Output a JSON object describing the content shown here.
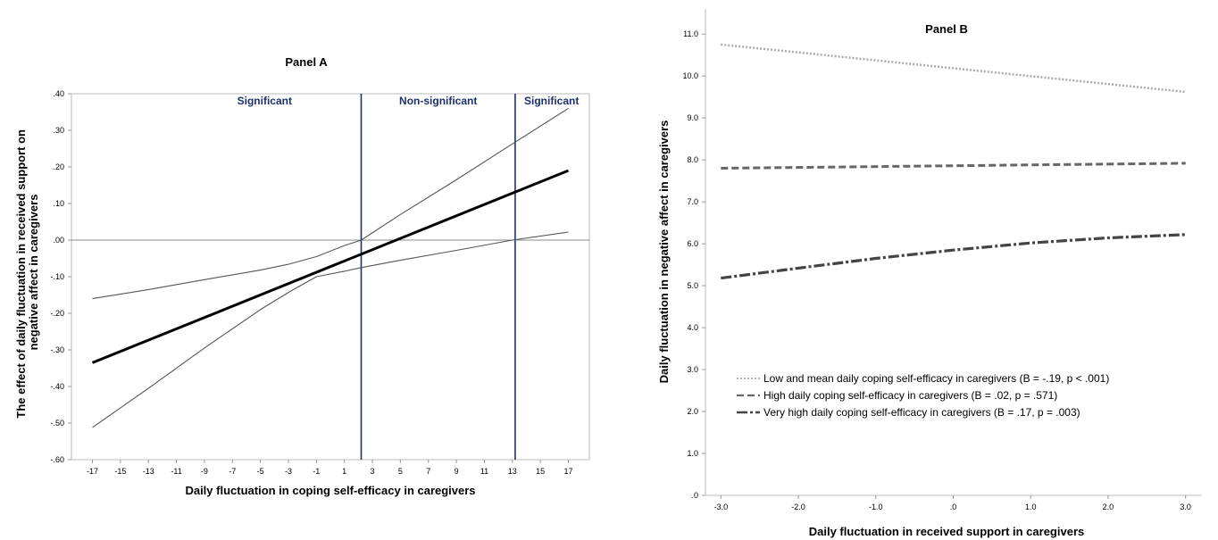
{
  "chart_data": [
    {
      "type": "line",
      "title": "Panel A",
      "xlabel": "Daily fluctuation in coping self-efficacy in caregivers",
      "ylabel": "The effect of daily fluctuation in received support on negative affect in caregivers",
      "xlim": [
        -18.5,
        18.5
      ],
      "ylim": [
        -0.6,
        0.4
      ],
      "x_ticks": [
        -17,
        -15,
        -13,
        -11,
        -9,
        -7,
        -5,
        -3,
        -1,
        1,
        3,
        5,
        7,
        9,
        11,
        13,
        15,
        17
      ],
      "x_tick_labels": [
        "-17",
        "-15",
        "-13",
        "-11",
        "-9",
        "-7",
        "-5",
        "-3",
        "-1",
        "1",
        "3",
        "5",
        "7",
        "9",
        "11",
        "13",
        "15",
        "17"
      ],
      "y_ticks": [
        -0.6,
        -0.5,
        -0.4,
        -0.3,
        -0.2,
        -0.1,
        0.0,
        0.1,
        0.2,
        0.3,
        0.4
      ],
      "y_tick_labels": [
        "-.60",
        "-.50",
        "-.40",
        "-.30",
        "-.20",
        "-.10",
        ".00",
        ".10",
        ".20",
        ".30",
        ".40"
      ],
      "reference_line_y": 0,
      "vertical_lines": [
        2.2,
        13.2
      ],
      "regions": [
        {
          "label": "Significant",
          "x": -4.7
        },
        {
          "label": "Non-significant",
          "x": 7.7
        },
        {
          "label": "Significant",
          "x": 15.8
        }
      ],
      "series": [
        {
          "role": "estimate",
          "color": "#000000",
          "x": [
            -17,
            17
          ],
          "y": [
            -0.335,
            0.19
          ]
        },
        {
          "role": "upper-ci",
          "color": "#555555",
          "x": [
            -17,
            -13,
            -9,
            -5,
            -3,
            -1,
            1,
            2.2,
            5,
            9,
            13,
            17
          ],
          "y": [
            -0.16,
            -0.135,
            -0.108,
            -0.082,
            -0.066,
            -0.045,
            -0.015,
            0.0,
            0.07,
            0.165,
            0.263,
            0.36
          ]
        },
        {
          "role": "lower-ci",
          "color": "#555555",
          "x": [
            -17,
            -13,
            -9,
            -5,
            -3,
            -1,
            1,
            2.2,
            5,
            9,
            13,
            17
          ],
          "y": [
            -0.512,
            -0.405,
            -0.295,
            -0.19,
            -0.143,
            -0.1,
            -0.085,
            -0.075,
            -0.055,
            -0.028,
            0.0,
            0.022
          ]
        }
      ]
    },
    {
      "type": "line",
      "title": "Panel B",
      "xlabel": "Daily fluctuation in received support in caregivers",
      "ylabel": "Daily fluctuation in negative affect in caregivers",
      "xlim": [
        -3.2,
        3.2
      ],
      "ylim": [
        0,
        11.6
      ],
      "x_ticks": [
        -3,
        -2,
        -1,
        0,
        1,
        2,
        3
      ],
      "x_tick_labels": [
        "-3.0",
        "-2.0",
        "-1.0",
        ".0",
        "1.0",
        "2.0",
        "3.0"
      ],
      "y_ticks": [
        0,
        1,
        2,
        3,
        4,
        5,
        6,
        7,
        8,
        9,
        10,
        11
      ],
      "y_tick_labels": [
        ".0",
        "1.0",
        "2.0",
        "3.0",
        "4.0",
        "5.0",
        "6.0",
        "7.0",
        "8.0",
        "9.0",
        "10.0",
        "11.0"
      ],
      "legend_position": "bottom-left",
      "series": [
        {
          "name": "Low and mean daily coping self-efficacy in caregivers (B = -.19, p < .001)",
          "color": "#aaaaaa",
          "dash": "dotted",
          "x": [
            -3,
            3
          ],
          "y": [
            10.75,
            9.62
          ]
        },
        {
          "name": "High daily coping self-efficacy in caregivers (B = .02, p = .571)",
          "color": "#666666",
          "dash": "dashed",
          "x": [
            -3,
            3
          ],
          "y": [
            7.8,
            7.92
          ]
        },
        {
          "name": "Very high daily coping self-efficacy in caregivers (B = .17, p = .003)",
          "color": "#444444",
          "dash": "dashdot",
          "x": [
            -3,
            -2,
            -1,
            0,
            1,
            2,
            3
          ],
          "y": [
            5.18,
            5.42,
            5.65,
            5.85,
            6.02,
            6.14,
            6.22
          ]
        }
      ]
    }
  ]
}
